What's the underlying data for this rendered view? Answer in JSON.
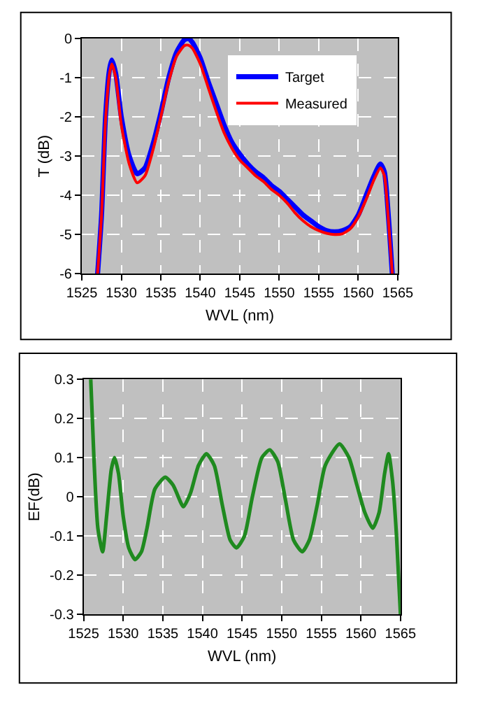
{
  "chart_data": [
    {
      "type": "line",
      "xlabel": "WVL (nm)",
      "ylabel": "T (dB)",
      "xlim": [
        1525,
        1565
      ],
      "xticks": [
        1525,
        1530,
        1535,
        1540,
        1545,
        1550,
        1555,
        1560,
        1565
      ],
      "ylim": [
        -6,
        0
      ],
      "yticks": [
        -6,
        -5,
        -4,
        -3,
        -2,
        -1,
        0
      ],
      "grid": true,
      "legend": "top right",
      "marker": "none",
      "line_style": "solid",
      "series": [
        {
          "name": "Target",
          "color": "#0000ff",
          "x": [
            1527.0,
            1527.5,
            1528,
            1528.5,
            1528.8,
            1529.3,
            1530,
            1531,
            1532,
            1533,
            1534,
            1535,
            1536,
            1537,
            1538,
            1538.5,
            1539,
            1540,
            1541,
            1542,
            1543,
            1544,
            1545,
            1546,
            1547,
            1548,
            1549,
            1550,
            1551,
            1552,
            1553,
            1554,
            1555,
            1556,
            1557,
            1558,
            1559,
            1560,
            1561,
            1562,
            1562.8,
            1563.3,
            1563.8,
            1564.3
          ],
          "values": [
            -6,
            -4.5,
            -2,
            -0.8,
            -0.55,
            -0.9,
            -2.0,
            -3.0,
            -3.45,
            -3.3,
            -2.7,
            -1.9,
            -1.0,
            -0.35,
            -0.03,
            0.0,
            -0.1,
            -0.5,
            -1.1,
            -1.65,
            -2.2,
            -2.65,
            -2.95,
            -3.2,
            -3.4,
            -3.55,
            -3.75,
            -3.9,
            -4.1,
            -4.3,
            -4.5,
            -4.65,
            -4.8,
            -4.9,
            -4.93,
            -4.9,
            -4.8,
            -4.5,
            -4.0,
            -3.5,
            -3.2,
            -3.4,
            -4.5,
            -6
          ]
        },
        {
          "name": "Measured",
          "color": "#ff0000",
          "x": [
            1527.0,
            1527.5,
            1528,
            1528.5,
            1528.8,
            1529.3,
            1530,
            1531,
            1532,
            1533,
            1534,
            1535,
            1536,
            1537,
            1538,
            1538.5,
            1539,
            1540,
            1541,
            1542,
            1543,
            1544,
            1545,
            1546,
            1547,
            1548,
            1549,
            1550,
            1551,
            1552,
            1553,
            1554,
            1555,
            1556,
            1557,
            1558,
            1559,
            1560,
            1561,
            1562,
            1562.8,
            1563.3,
            1563.8,
            1564.3
          ],
          "values": [
            -6,
            -4.5,
            -2.1,
            -0.9,
            -0.65,
            -1.0,
            -2.2,
            -3.2,
            -3.68,
            -3.5,
            -2.85,
            -2.0,
            -1.1,
            -0.45,
            -0.18,
            -0.17,
            -0.25,
            -0.65,
            -1.25,
            -1.85,
            -2.4,
            -2.8,
            -3.1,
            -3.3,
            -3.5,
            -3.65,
            -3.85,
            -4.0,
            -4.2,
            -4.45,
            -4.65,
            -4.8,
            -4.9,
            -4.97,
            -5.0,
            -4.98,
            -4.85,
            -4.55,
            -4.1,
            -3.6,
            -3.3,
            -3.5,
            -4.6,
            -6
          ]
        }
      ]
    },
    {
      "type": "line",
      "xlabel": "WVL (nm)",
      "ylabel": "EF(dB)",
      "xlim": [
        1525,
        1565
      ],
      "xticks": [
        1525,
        1530,
        1535,
        1540,
        1545,
        1550,
        1555,
        1560,
        1565
      ],
      "ylim": [
        -0.3,
        0.3
      ],
      "yticks": [
        -0.3,
        -0.2,
        -0.1,
        0,
        0.1,
        0.2,
        0.3
      ],
      "grid": true,
      "marker": "none",
      "line_style": "solid",
      "series": [
        {
          "color": "#1f8a1f",
          "x": [
            1525.9,
            1526.3,
            1526.8,
            1527.4,
            1527.9,
            1528.5,
            1528.9,
            1529.4,
            1530,
            1530.7,
            1531.5,
            1532.3,
            1533,
            1534,
            1535.3,
            1536.3,
            1537.6,
            1538.5,
            1539.5,
            1540.5,
            1541.5,
            1542.5,
            1543.5,
            1544.3,
            1545.3,
            1546.3,
            1547.5,
            1548.5,
            1549.5,
            1550.5,
            1551.5,
            1552.6,
            1553.5,
            1554.5,
            1555.5,
            1557.3,
            1558.5,
            1559.5,
            1560.5,
            1561.5,
            1562.3,
            1563,
            1563.5,
            1564,
            1564.5,
            1565
          ],
          "values": [
            0.3,
            0.1,
            -0.08,
            -0.14,
            -0.05,
            0.07,
            0.1,
            0.06,
            -0.05,
            -0.13,
            -0.16,
            -0.14,
            -0.08,
            0.02,
            0.05,
            0.03,
            -0.025,
            0.01,
            0.08,
            0.11,
            0.08,
            -0.02,
            -0.11,
            -0.13,
            -0.1,
            0.0,
            0.1,
            0.12,
            0.09,
            -0.01,
            -0.11,
            -0.14,
            -0.11,
            -0.02,
            0.08,
            0.135,
            0.1,
            0.03,
            -0.04,
            -0.08,
            -0.04,
            0.06,
            0.11,
            0.04,
            -0.1,
            -0.3
          ]
        }
      ]
    }
  ]
}
